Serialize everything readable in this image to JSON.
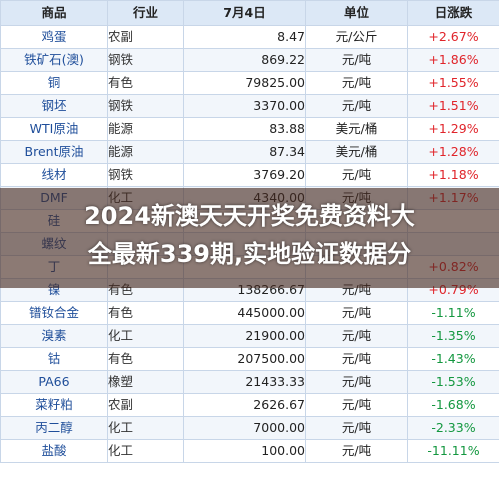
{
  "headers": {
    "name": "商品",
    "industry": "行业",
    "price": "7月4日",
    "unit": "单位",
    "change": "日涨跌"
  },
  "rows": [
    {
      "name": "鸡蛋",
      "industry": "农副",
      "price": "8.47",
      "unit": "元/公斤",
      "change": "+2.67%",
      "direction": "up"
    },
    {
      "name": "铁矿石(澳)",
      "industry": "钢铁",
      "price": "869.22",
      "unit": "元/吨",
      "change": "+1.86%",
      "direction": "up"
    },
    {
      "name": "铜",
      "industry": "有色",
      "price": "79825.00",
      "unit": "元/吨",
      "change": "+1.55%",
      "direction": "up"
    },
    {
      "name": "钢坯",
      "industry": "钢铁",
      "price": "3370.00",
      "unit": "元/吨",
      "change": "+1.51%",
      "direction": "up"
    },
    {
      "name": "WTI原油",
      "industry": "能源",
      "price": "83.88",
      "unit": "美元/桶",
      "change": "+1.29%",
      "direction": "up"
    },
    {
      "name": "Brent原油",
      "industry": "能源",
      "price": "87.34",
      "unit": "美元/桶",
      "change": "+1.28%",
      "direction": "up"
    },
    {
      "name": "线材",
      "industry": "钢铁",
      "price": "3769.20",
      "unit": "元/吨",
      "change": "+1.18%",
      "direction": "up"
    },
    {
      "name": "DMF",
      "industry": "化工",
      "price": "4340.00",
      "unit": "元/吨",
      "change": "+1.17%",
      "direction": "up"
    },
    {
      "name": "硅",
      "industry": "",
      "price": "",
      "unit": "",
      "change": "",
      "direction": "up"
    },
    {
      "name": "螺纹",
      "industry": "",
      "price": "",
      "unit": "",
      "change": "",
      "direction": "up"
    },
    {
      "name": "丁",
      "industry": "",
      "price": "",
      "unit": "",
      "change": "+0.82%",
      "direction": "up"
    },
    {
      "name": "镍",
      "industry": "有色",
      "price": "138266.67",
      "unit": "元/吨",
      "change": "+0.79%",
      "direction": "up"
    },
    {
      "name": "镨钕合金",
      "industry": "有色",
      "price": "445000.00",
      "unit": "元/吨",
      "change": "-1.11%",
      "direction": "down"
    },
    {
      "name": "溴素",
      "industry": "化工",
      "price": "21900.00",
      "unit": "元/吨",
      "change": "-1.35%",
      "direction": "down"
    },
    {
      "name": "钴",
      "industry": "有色",
      "price": "207500.00",
      "unit": "元/吨",
      "change": "-1.43%",
      "direction": "down"
    },
    {
      "name": "PA66",
      "industry": "橡塑",
      "price": "21433.33",
      "unit": "元/吨",
      "change": "-1.53%",
      "direction": "down"
    },
    {
      "name": "菜籽粕",
      "industry": "农副",
      "price": "2626.67",
      "unit": "元/吨",
      "change": "-1.68%",
      "direction": "down"
    },
    {
      "name": "丙二醇",
      "industry": "化工",
      "price": "7000.00",
      "unit": "元/吨",
      "change": "-2.33%",
      "direction": "down"
    },
    {
      "name": "盐酸",
      "industry": "化工",
      "price": "100.00",
      "unit": "元/吨",
      "change": "-11.11%",
      "direction": "down"
    }
  ],
  "overlay": {
    "line1": "2024新澳天天开奖免费资料大",
    "line2": "全最新339期,实地验证数据分"
  }
}
